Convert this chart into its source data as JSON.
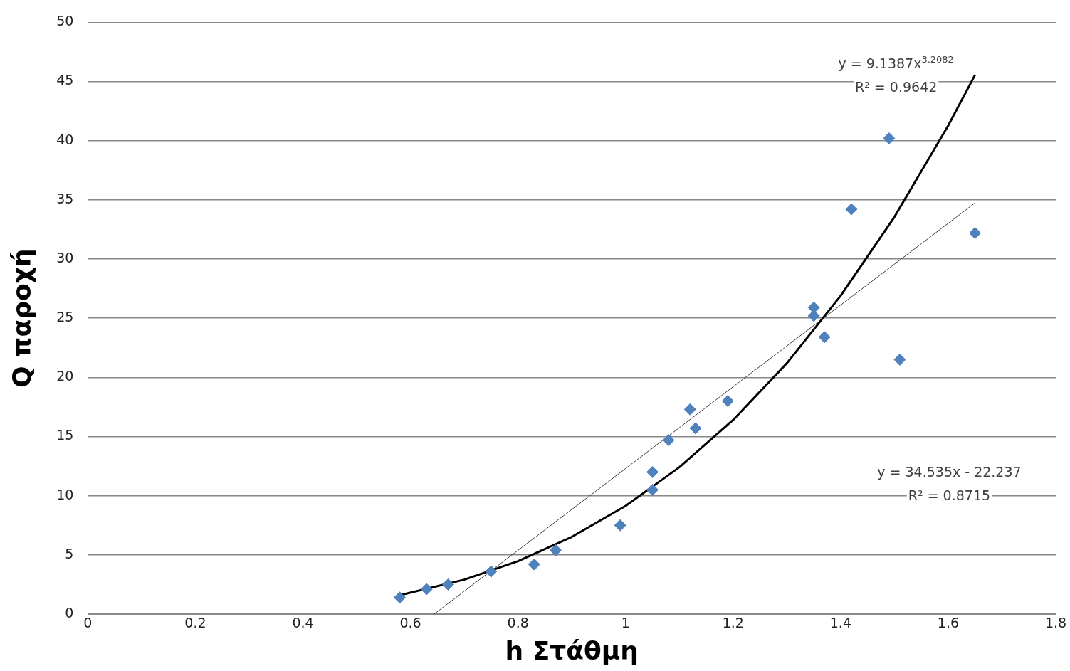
{
  "chart_data": {
    "type": "scatter",
    "xlabel": "h Στάθμη",
    "ylabel": "Q παροχή",
    "xlim": [
      0,
      1.8
    ],
    "xticks": [
      0,
      0.2,
      0.4,
      0.6,
      0.8,
      1,
      1.2,
      1.4,
      1.6,
      1.8
    ],
    "ylim": [
      0,
      50
    ],
    "yticks": [
      0,
      5,
      10,
      15,
      20,
      25,
      30,
      35,
      40,
      45,
      50
    ],
    "grid": "y",
    "legend": false,
    "marker": "diamond",
    "series": [
      {
        "color": "#4f81bd",
        "x": [
          0.58,
          0.63,
          0.67,
          0.75,
          0.83,
          0.87,
          0.99,
          1.05,
          1.05,
          1.08,
          1.12,
          1.13,
          1.19,
          1.35,
          1.35,
          1.37,
          1.42,
          1.49,
          1.51,
          1.65
        ],
        "values": [
          1.4,
          2.1,
          2.5,
          3.6,
          4.2,
          5.4,
          7.5,
          12,
          10.5,
          14.7,
          17.3,
          15.7,
          18,
          25.9,
          25.2,
          23.4,
          34.2,
          40.2,
          21.5,
          32.2
        ]
      },
      {
        "type": "line",
        "color": "#000000",
        "marker": "none",
        "x": [
          0.58,
          0.7,
          0.8,
          0.9,
          1,
          1.1,
          1.2,
          1.3,
          1.4,
          1.5,
          1.6,
          1.65
        ],
        "values": [
          1.59,
          2.91,
          4.47,
          6.52,
          9.14,
          12.41,
          16.4,
          21.2,
          26.9,
          33.56,
          41.28,
          45.57
        ]
      },
      {
        "type": "line",
        "color": "#404040",
        "marker": "none",
        "x": [
          0.644,
          1.65
        ],
        "values": [
          0,
          34.75
        ]
      }
    ],
    "annotations": [
      "y = 9.1387x$^{3.2082}$",
      "R² = 0.9642",
      "y = 34.535x - 22.237",
      "R² = 0.8715"
    ]
  }
}
